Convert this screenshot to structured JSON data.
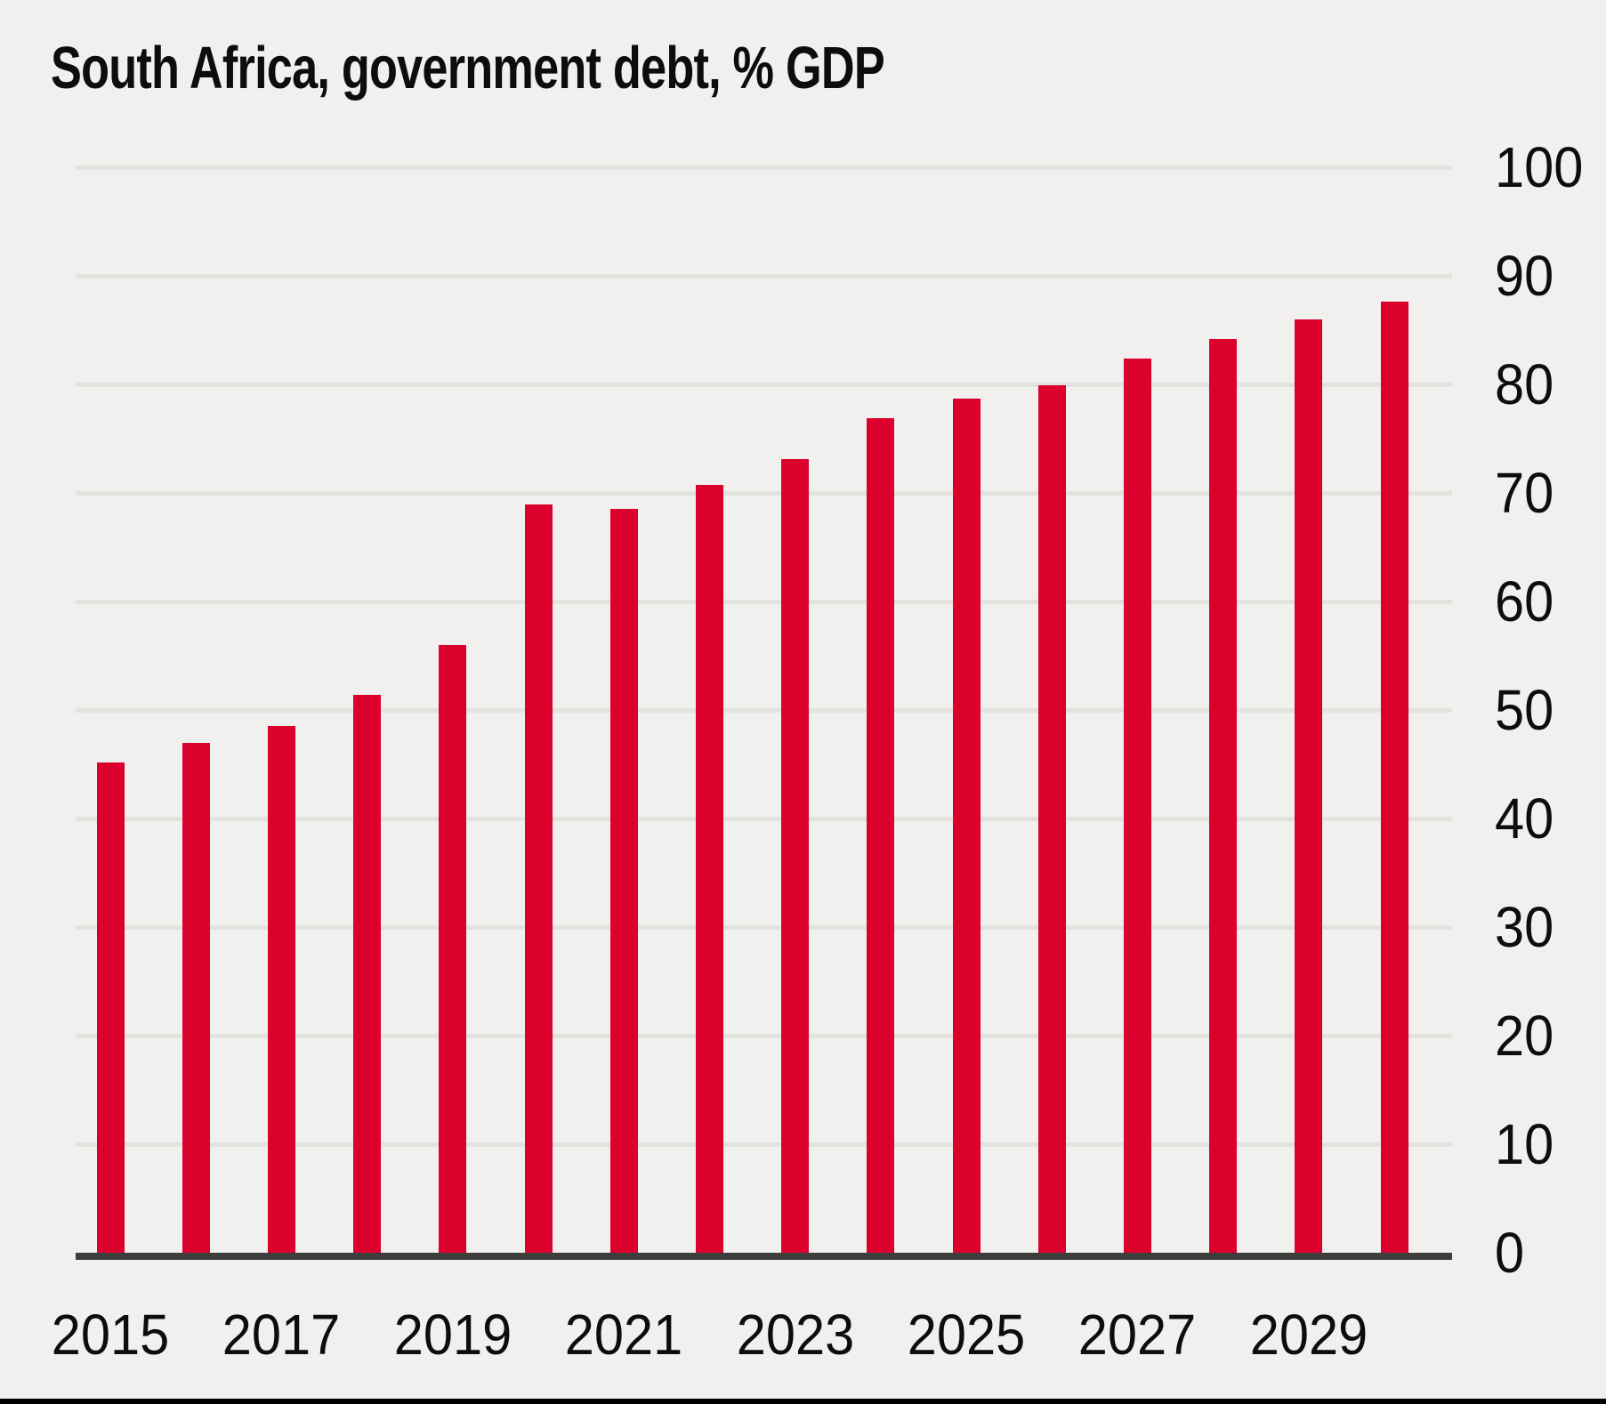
{
  "page": {
    "background_color": "#f1f0ee",
    "bottom_border_color": "#000000"
  },
  "chart_data": {
    "type": "bar",
    "title": "South Africa, government debt, % GDP",
    "categories": [
      "2015",
      "2016",
      "2017",
      "2018",
      "2019",
      "2020",
      "2021",
      "2022",
      "2023",
      "2024",
      "2025",
      "2026",
      "2027",
      "2028",
      "2029",
      "2030"
    ],
    "values": [
      45.2,
      47.0,
      48.5,
      51.4,
      56.0,
      68.9,
      68.5,
      70.7,
      73.1,
      76.9,
      78.7,
      79.9,
      82.4,
      84.2,
      86.0,
      87.6
    ],
    "x_tick_labels": [
      "2015",
      "2017",
      "2019",
      "2021",
      "2023",
      "2025",
      "2027",
      "2029"
    ],
    "y_ticks": [
      0,
      10,
      20,
      30,
      40,
      50,
      60,
      70,
      80,
      90,
      100
    ],
    "ylim": [
      0,
      100
    ],
    "xlabel": "",
    "ylabel": "",
    "y_axis_side": "right",
    "grid": "horizontal",
    "legend": "none",
    "bar_color": "#dc002d",
    "gridline_color": "#e4e2de",
    "axis_line_color": "#3d3d3b",
    "text_color": "#0d0d0d"
  }
}
